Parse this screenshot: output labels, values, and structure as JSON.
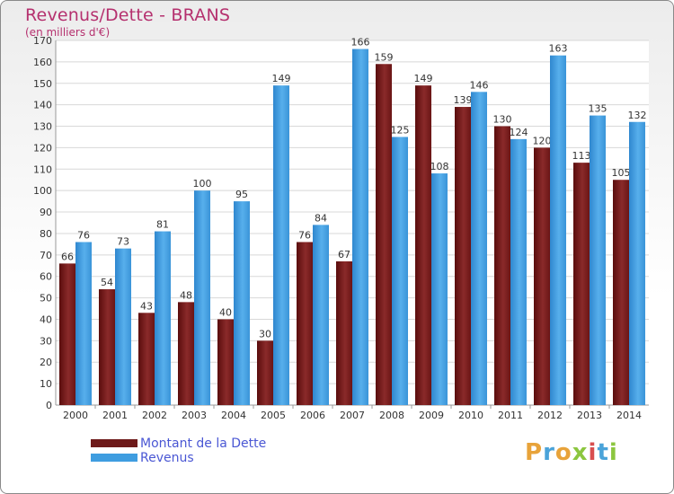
{
  "chart_data": {
    "type": "bar",
    "title": "Revenus/Dette - BRANS",
    "subtitle": "(en milliers d'€)",
    "categories": [
      "2000",
      "2001",
      "2002",
      "2003",
      "2004",
      "2005",
      "2006",
      "2007",
      "2008",
      "2009",
      "2010",
      "2011",
      "2012",
      "2013",
      "2014"
    ],
    "series": [
      {
        "name": "Montant de la Dette",
        "color": "#7a1f1f",
        "values": [
          66,
          54,
          43,
          48,
          40,
          30,
          76,
          67,
          159,
          149,
          139,
          130,
          120,
          113,
          105
        ]
      },
      {
        "name": "Revenus",
        "color": "#3f9de0",
        "values": [
          76,
          73,
          81,
          100,
          95,
          149,
          84,
          166,
          125,
          108,
          146,
          124,
          163,
          135,
          132
        ]
      }
    ],
    "ylim": [
      0,
      170
    ],
    "ytick_step": 10,
    "grid": true,
    "legend": "bottom-left"
  },
  "logo": {
    "text": "Proxiti",
    "colors": [
      "#e8a33a",
      "#4aa3d9",
      "#e8a33a",
      "#8cc63f",
      "#d94f4f",
      "#4aa3d9",
      "#8cc63f"
    ]
  }
}
